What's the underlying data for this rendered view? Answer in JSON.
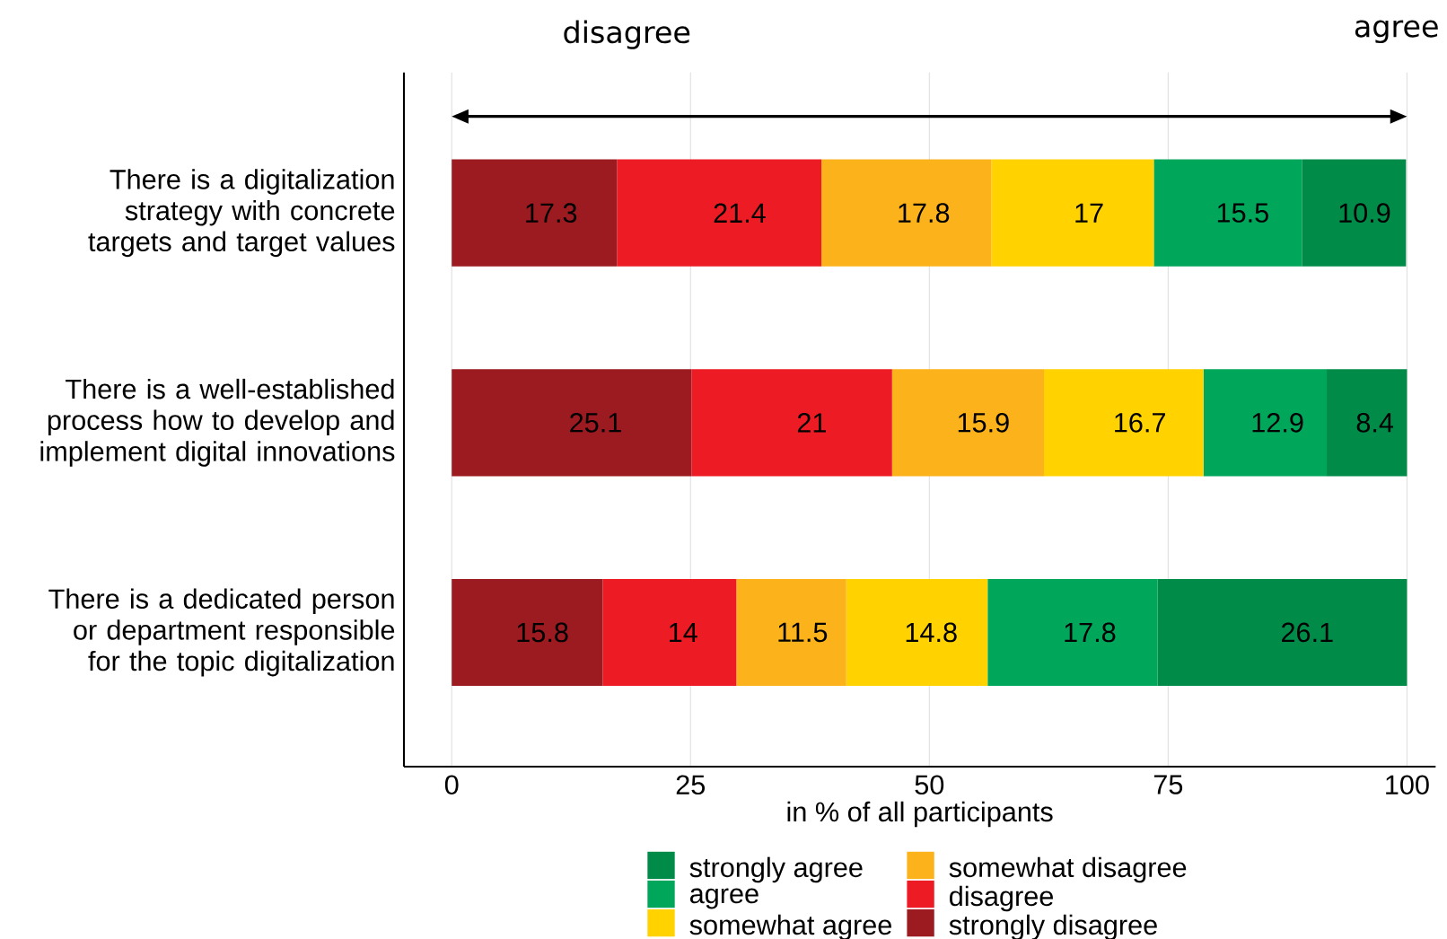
{
  "chart_data": {
    "type": "bar",
    "orientation": "horizontal",
    "stacked": true,
    "xlabel": "in % of all participants",
    "categories": [
      "There is a digitalization strategy with concrete targets and target values",
      "There is a well-established process how to develop and implement digital innovations",
      "There is a dedicated person or department responsible for the topic digitalization"
    ],
    "series": [
      {
        "name": "strongly disagree",
        "color": "#9b1b20",
        "values": [
          17.3,
          25.1,
          15.8
        ]
      },
      {
        "name": "disagree",
        "color": "#ed1c24",
        "values": [
          21.4,
          21,
          14
        ]
      },
      {
        "name": "somewhat disagree",
        "color": "#fbb21b",
        "values": [
          17.8,
          15.9,
          11.5
        ]
      },
      {
        "name": "somewhat agree",
        "color": "#ffd200",
        "values": [
          17,
          16.7,
          14.8
        ]
      },
      {
        "name": "agree",
        "color": "#00a65a",
        "values": [
          15.5,
          12.9,
          17.8
        ]
      },
      {
        "name": "strongly agree",
        "color": "#008c48",
        "values": [
          10.9,
          8.4,
          26.1
        ]
      }
    ],
    "xlim": [
      -5,
      103
    ],
    "xticks": [
      0,
      25,
      50,
      75,
      100
    ],
    "grid": "x",
    "legend": "bottom",
    "data_labels": true,
    "annotations": [
      "disagree",
      "agree"
    ]
  }
}
